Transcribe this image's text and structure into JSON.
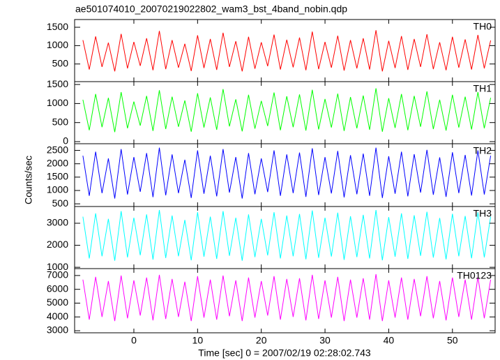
{
  "title": "ae501074010_20070219022802_wam3_bst_4band_nobin.qdp",
  "xlabel": "Time [sec] 0 = 2007/02/19 02:28:02.743",
  "ylabel": "Counts/sec",
  "chart_data": [
    {
      "type": "line",
      "label": "TH0",
      "color": "#ff0000",
      "xlim": [
        -9.3,
        56.7
      ],
      "ylim": [
        20,
        1710
      ],
      "yticks": [
        500,
        1000,
        1500
      ],
      "x": [
        -8,
        -7,
        -6,
        -5,
        -4,
        -3,
        -2,
        -1,
        0,
        1,
        2,
        3,
        4,
        5,
        6,
        7,
        8,
        9,
        10,
        11,
        12,
        13,
        14,
        15,
        16,
        17,
        18,
        19,
        20,
        21,
        22,
        23,
        24,
        25,
        26,
        27,
        28,
        29,
        30,
        31,
        32,
        33,
        34,
        35,
        36,
        37,
        38,
        39,
        40,
        41,
        42,
        43,
        44,
        45,
        46,
        47,
        48,
        49,
        50,
        51,
        52,
        53,
        54,
        55,
        56
      ],
      "values": [
        1150,
        350,
        1250,
        420,
        1080,
        300,
        1320,
        380,
        1100,
        450,
        1200,
        330,
        1400,
        360,
        1150,
        400,
        1050,
        310,
        1280,
        390,
        1180,
        340,
        1350,
        420,
        1120,
        300,
        1240,
        370,
        1090,
        440,
        1300,
        350,
        1160,
        410,
        1220,
        330,
        1380,
        360,
        1100,
        400,
        1270,
        320,
        1150,
        380,
        1200,
        350,
        1420,
        300,
        1130,
        390,
        1260,
        340,
        1180,
        420,
        1310,
        360,
        1090,
        330,
        1240,
        400,
        1170,
        350,
        1290,
        380,
        1140
      ]
    },
    {
      "type": "line",
      "label": "TH1",
      "color": "#00ff00",
      "xlim": [
        -9.3,
        56.7
      ],
      "ylim": [
        -55,
        1575
      ],
      "yticks": [
        0,
        500,
        1000,
        1500
      ],
      "x": [
        -8,
        -7,
        -6,
        -5,
        -4,
        -3,
        -2,
        -1,
        0,
        1,
        2,
        3,
        4,
        5,
        6,
        7,
        8,
        9,
        10,
        11,
        12,
        13,
        14,
        15,
        16,
        17,
        18,
        19,
        20,
        21,
        22,
        23,
        24,
        25,
        26,
        27,
        28,
        29,
        30,
        31,
        32,
        33,
        34,
        35,
        36,
        37,
        38,
        39,
        40,
        41,
        42,
        43,
        44,
        45,
        46,
        47,
        48,
        49,
        50,
        51,
        52,
        53,
        54,
        55,
        56
      ],
      "values": [
        1100,
        300,
        1250,
        380,
        1150,
        250,
        1300,
        350,
        1050,
        420,
        1200,
        280,
        1350,
        330,
        1180,
        390,
        1080,
        260,
        1270,
        370,
        1160,
        310,
        1380,
        400,
        1110,
        270,
        1230,
        340,
        1070,
        410,
        1290,
        300,
        1190,
        380,
        1240,
        290,
        1360,
        320,
        1120,
        370,
        1260,
        280,
        1170,
        350,
        1210,
        310,
        1400,
        260,
        1140,
        360,
        1250,
        300,
        1200,
        390,
        1320,
        330,
        1100,
        290,
        1230,
        370,
        1180,
        320,
        1300,
        350,
        1150
      ]
    },
    {
      "type": "line",
      "label": "TH2",
      "color": "#0000ff",
      "xlim": [
        -9.3,
        56.7
      ],
      "ylim": [
        400,
        2750
      ],
      "yticks": [
        500,
        1000,
        1500,
        2000,
        2500
      ],
      "x": [
        -8,
        -7,
        -6,
        -5,
        -4,
        -3,
        -2,
        -1,
        0,
        1,
        2,
        3,
        4,
        5,
        6,
        7,
        8,
        9,
        10,
        11,
        12,
        13,
        14,
        15,
        16,
        17,
        18,
        19,
        20,
        21,
        22,
        23,
        24,
        25,
        26,
        27,
        28,
        29,
        30,
        31,
        32,
        33,
        34,
        35,
        36,
        37,
        38,
        39,
        40,
        41,
        42,
        43,
        44,
        45,
        46,
        47,
        48,
        49,
        50,
        51,
        52,
        53,
        54,
        55,
        56
      ],
      "values": [
        2300,
        800,
        2450,
        900,
        2200,
        700,
        2550,
        850,
        2250,
        950,
        2400,
        750,
        2600,
        820,
        2350,
        900,
        2150,
        720,
        2500,
        880,
        2300,
        780,
        2550,
        920,
        2250,
        700,
        2400,
        860,
        2200,
        940,
        2500,
        800,
        2350,
        900,
        2420,
        760,
        2580,
        830,
        2250,
        890,
        2480,
        740,
        2320,
        860,
        2380,
        800,
        2600,
        720,
        2280,
        880,
        2450,
        780,
        2360,
        920,
        2520,
        840,
        2240,
        760,
        2430,
        900,
        2330,
        810,
        2500,
        850,
        2300
      ]
    },
    {
      "type": "line",
      "label": "TH3",
      "color": "#00ffff",
      "xlim": [
        -9.3,
        56.7
      ],
      "ylim": [
        940,
        3760
      ],
      "yticks": [
        1000,
        2000,
        3000
      ],
      "x": [
        -8,
        -7,
        -6,
        -5,
        -4,
        -3,
        -2,
        -1,
        0,
        1,
        2,
        3,
        4,
        5,
        6,
        7,
        8,
        9,
        10,
        11,
        12,
        13,
        14,
        15,
        16,
        17,
        18,
        19,
        20,
        21,
        22,
        23,
        24,
        25,
        26,
        27,
        28,
        29,
        30,
        31,
        32,
        33,
        34,
        35,
        36,
        37,
        38,
        39,
        40,
        41,
        42,
        43,
        44,
        45,
        46,
        47,
        48,
        49,
        50,
        51,
        52,
        53,
        54,
        55,
        56
      ],
      "values": [
        3300,
        1400,
        3450,
        1500,
        3200,
        1300,
        3550,
        1450,
        3250,
        1550,
        3400,
        1350,
        3600,
        1420,
        3350,
        1500,
        3150,
        1320,
        3500,
        1480,
        3300,
        1380,
        3550,
        1520,
        3250,
        1300,
        3400,
        1460,
        3200,
        1540,
        3500,
        1400,
        3350,
        1500,
        3420,
        1360,
        3580,
        1430,
        3250,
        1490,
        3480,
        1340,
        3320,
        1460,
        3380,
        1400,
        3600,
        1320,
        3280,
        1480,
        3450,
        1380,
        3360,
        1520,
        3520,
        1440,
        3240,
        1360,
        3430,
        1500,
        3330,
        1410,
        3500,
        1450,
        3300
      ]
    },
    {
      "type": "line",
      "label": "TH0123",
      "color": "#ff00ff",
      "xlim": [
        -9.3,
        56.7
      ],
      "ylim": [
        2850,
        7500
      ],
      "yticks": [
        3000,
        4000,
        5000,
        6000,
        7000
      ],
      "xticks": [
        0,
        10,
        20,
        30,
        40,
        50
      ],
      "x": [
        -8,
        -7,
        -6,
        -5,
        -4,
        -3,
        -2,
        -1,
        0,
        1,
        2,
        3,
        4,
        5,
        6,
        7,
        8,
        9,
        10,
        11,
        12,
        13,
        14,
        15,
        16,
        17,
        18,
        19,
        20,
        21,
        22,
        23,
        24,
        25,
        26,
        27,
        28,
        29,
        30,
        31,
        32,
        33,
        34,
        35,
        36,
        37,
        38,
        39,
        40,
        41,
        42,
        43,
        44,
        45,
        46,
        47,
        48,
        49,
        50,
        51,
        52,
        53,
        54,
        55,
        56
      ],
      "values": [
        6700,
        3800,
        6900,
        4000,
        6600,
        3700,
        7000,
        3900,
        6650,
        4100,
        6850,
        3750,
        7050,
        3850,
        6750,
        4000,
        6550,
        3700,
        6950,
        3950,
        6700,
        3800,
        7000,
        4050,
        6650,
        3700,
        6850,
        3950,
        6600,
        4100,
        6950,
        3800,
        6750,
        4000,
        6800,
        3750,
        7050,
        3850,
        6650,
        3950,
        6900,
        3700,
        6700,
        3950,
        6800,
        3800,
        7100,
        3700,
        6650,
        3950,
        6850,
        3800,
        6750,
        4050,
        6950,
        3900,
        6600,
        3750,
        6850,
        4000,
        6700,
        3800,
        6900,
        3900,
        6700
      ]
    }
  ]
}
